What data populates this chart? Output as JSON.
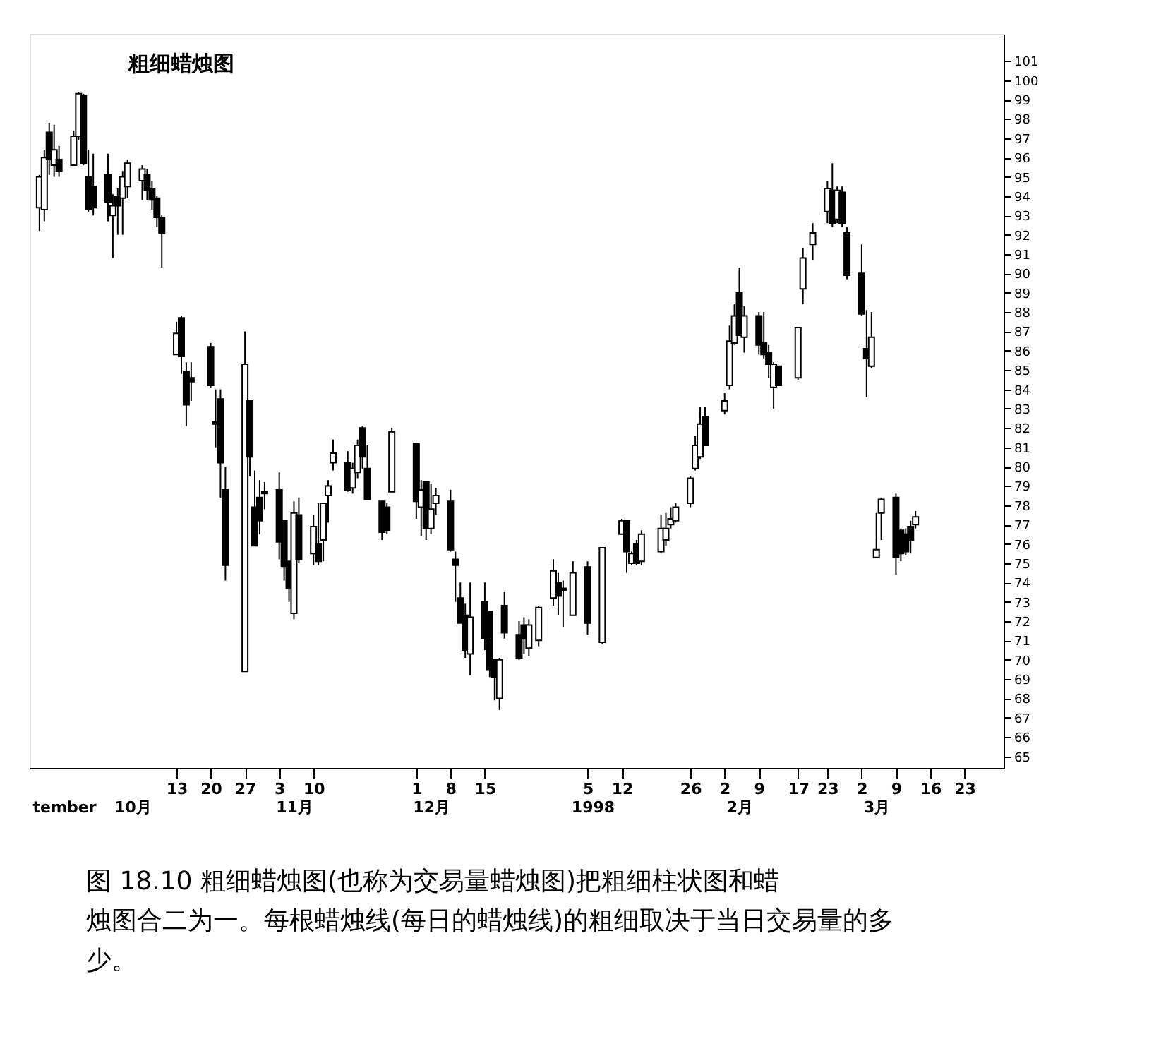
{
  "chart_data": {
    "type": "candlestick",
    "title": "粗细蜡烛图",
    "x": [
      "1997-09-15",
      "1997-09-16",
      "1997-09-17",
      "1997-09-18",
      "1997-09-19",
      "1997-09-22",
      "1997-09-23",
      "1997-09-24",
      "1997-09-25",
      "1997-09-26",
      "1997-09-29",
      "1997-09-30",
      "1997-10-01",
      "1997-10-02",
      "1997-10-03",
      "1997-10-06",
      "1997-10-07",
      "1997-10-08",
      "1997-10-09",
      "1997-10-10",
      "1997-10-13",
      "1997-10-14",
      "1997-10-15",
      "1997-10-16",
      "1997-10-20",
      "1997-10-21",
      "1997-10-22",
      "1997-10-23",
      "1997-10-27",
      "1997-10-28",
      "1997-10-29",
      "1997-10-30",
      "1997-10-31",
      "1997-11-03",
      "1997-11-04",
      "1997-11-05",
      "1997-11-06",
      "1997-11-07",
      "1997-11-10",
      "1997-11-11",
      "1997-11-12",
      "1997-11-13",
      "1997-11-14",
      "1997-11-17",
      "1997-11-18",
      "1997-11-19",
      "1997-11-20",
      "1997-11-21",
      "1997-11-24",
      "1997-11-25",
      "1997-11-26",
      "1997-12-01",
      "1997-12-02",
      "1997-12-03",
      "1997-12-04",
      "1997-12-05",
      "1997-12-08",
      "1997-12-09",
      "1997-12-10",
      "1997-12-11",
      "1997-12-12",
      "1997-12-15",
      "1997-12-16",
      "1997-12-17",
      "1997-12-18",
      "1997-12-19",
      "1997-12-22",
      "1997-12-23",
      "1997-12-24",
      "1997-12-26",
      "1997-12-29",
      "1997-12-30",
      "1997-12-31",
      "1998-01-02",
      "1998-01-05",
      "1998-01-08",
      "1998-01-12",
      "1998-01-13",
      "1998-01-14",
      "1998-01-15",
      "1998-01-16",
      "1998-01-20",
      "1998-01-21",
      "1998-01-22",
      "1998-01-23",
      "1998-01-26",
      "1998-01-27",
      "1998-01-28",
      "1998-01-29",
      "1998-02-02",
      "1998-02-03",
      "1998-02-04",
      "1998-02-05",
      "1998-02-06",
      "1998-02-09",
      "1998-02-10",
      "1998-02-11",
      "1998-02-12",
      "1998-02-13",
      "1998-02-17",
      "1998-02-18",
      "1998-02-20",
      "1998-02-23",
      "1998-02-24",
      "1998-02-25",
      "1998-02-26",
      "1998-02-27",
      "1998-03-02",
      "1998-03-03",
      "1998-03-04",
      "1998-03-05",
      "1998-03-06",
      "1998-03-09",
      "1998-03-10",
      "1998-03-11",
      "1998-03-12",
      "1998-03-13"
    ],
    "ohlc": [
      [
        93.4,
        95.1,
        92.2,
        95.0
      ],
      [
        93.3,
        96.4,
        92.7,
        96.0
      ],
      [
        97.3,
        97.8,
        95.1,
        95.9
      ],
      [
        95.6,
        97.7,
        95.0,
        96.4
      ],
      [
        95.9,
        96.6,
        95.0,
        95.3
      ],
      [
        95.6,
        97.4,
        95.6,
        97.1
      ],
      [
        97.1,
        99.4,
        96.9,
        99.3
      ],
      [
        99.2,
        99.3,
        95.6,
        95.7
      ],
      [
        95.0,
        96.4,
        93.2,
        93.3
      ],
      [
        94.5,
        96.2,
        93.0,
        93.4
      ],
      [
        95.1,
        96.2,
        92.7,
        93.7
      ],
      [
        93.0,
        94.1,
        90.8,
        93.5
      ],
      [
        94.0,
        94.4,
        92.0,
        93.5
      ],
      [
        93.9,
        95.3,
        92.0,
        95.0
      ],
      [
        94.5,
        95.9,
        93.9,
        95.7
      ],
      [
        94.8,
        95.6,
        93.8,
        95.4
      ],
      [
        95.1,
        95.4,
        93.8,
        94.3
      ],
      [
        94.4,
        94.8,
        93.3,
        93.8
      ],
      [
        93.9,
        94.0,
        92.4,
        92.9
      ],
      [
        92.9,
        93.0,
        90.3,
        92.1
      ],
      [
        85.8,
        87.5,
        85.8,
        86.9
      ],
      [
        87.7,
        87.8,
        84.8,
        85.7
      ],
      [
        84.9,
        85.4,
        82.1,
        83.2
      ],
      [
        84.6,
        85.4,
        83.4,
        84.4
      ],
      [
        86.2,
        86.4,
        84.1,
        84.2
      ],
      [
        82.3,
        84.0,
        81.0,
        82.2
      ],
      [
        83.5,
        84.0,
        78.4,
        80.2
      ],
      [
        78.8,
        80.0,
        74.1,
        74.9
      ],
      [
        69.4,
        87.0,
        69.4,
        85.3
      ],
      [
        83.4,
        83.4,
        79.5,
        80.5
      ],
      [
        77.9,
        79.8,
        75.9,
        75.9
      ],
      [
        78.4,
        79.3,
        76.5,
        77.2
      ],
      [
        78.7,
        79.2,
        77.8,
        78.6
      ],
      [
        78.8,
        79.7,
        75.2,
        76.1
      ],
      [
        77.2,
        77.2,
        74.1,
        74.8
      ],
      [
        75.1,
        75.1,
        73.0,
        73.7
      ],
      [
        72.4,
        78.2,
        72.1,
        77.6
      ],
      [
        77.5,
        78.4,
        75.0,
        75.2
      ],
      [
        75.5,
        77.5,
        74.9,
        76.9
      ],
      [
        76.0,
        78.1,
        74.9,
        75.1
      ],
      [
        76.2,
        78.1,
        75.1,
        78.1
      ],
      [
        78.5,
        79.3,
        77.1,
        79.0
      ],
      [
        80.2,
        81.4,
        79.8,
        80.7
      ],
      [
        80.2,
        80.8,
        78.7,
        78.8
      ],
      [
        78.9,
        80.2,
        78.6,
        79.9
      ],
      [
        79.7,
        81.4,
        79.4,
        81.1
      ],
      [
        82.0,
        82.1,
        79.9,
        80.5
      ],
      [
        79.9,
        81.1,
        78.3,
        78.3
      ],
      [
        78.2,
        78.2,
        76.2,
        76.6
      ],
      [
        77.9,
        78.1,
        76.5,
        76.7
      ],
      [
        78.7,
        82.0,
        78.7,
        81.8
      ],
      [
        81.2,
        81.2,
        77.3,
        78.2
      ],
      [
        77.9,
        79.3,
        76.4,
        78.8
      ],
      [
        79.2,
        79.2,
        76.2,
        76.8
      ],
      [
        76.8,
        79.1,
        76.5,
        77.8
      ],
      [
        78.1,
        78.9,
        77.5,
        78.5
      ],
      [
        78.2,
        78.8,
        75.6,
        75.7
      ],
      [
        75.2,
        75.6,
        73.0,
        74.9
      ],
      [
        73.2,
        74.0,
        71.9,
        71.9
      ],
      [
        72.3,
        72.9,
        70.1,
        70.5
      ],
      [
        70.3,
        74.0,
        69.2,
        72.2
      ],
      [
        73.0,
        74.0,
        70.5,
        71.1
      ],
      [
        72.5,
        72.5,
        69.1,
        69.5
      ],
      [
        70.0,
        70.0,
        67.9,
        69.1
      ],
      [
        68.0,
        70.1,
        67.4,
        70.0
      ],
      [
        72.8,
        73.5,
        71.1,
        71.4
      ],
      [
        71.3,
        72.0,
        70.0,
        70.1
      ],
      [
        71.8,
        72.2,
        70.3,
        71.1
      ],
      [
        70.6,
        72.1,
        70.2,
        71.8
      ],
      [
        71.0,
        72.8,
        70.7,
        72.7
      ],
      [
        73.2,
        75.2,
        72.8,
        74.6
      ],
      [
        74.0,
        74.5,
        72.3,
        73.3
      ],
      [
        73.7,
        74.1,
        71.7,
        73.6
      ],
      [
        72.3,
        75.1,
        72.3,
        74.5
      ],
      [
        74.8,
        75.1,
        71.3,
        71.9
      ],
      [
        70.9,
        75.8,
        70.8,
        75.8
      ],
      [
        76.5,
        77.3,
        76.5,
        77.2
      ],
      [
        77.2,
        77.2,
        74.5,
        75.6
      ],
      [
        75.0,
        75.6,
        74.9,
        75.5
      ],
      [
        76.0,
        76.2,
        74.9,
        75.0
      ],
      [
        75.1,
        76.7,
        74.9,
        76.5
      ],
      [
        75.6,
        77.5,
        75.5,
        76.8
      ],
      [
        76.2,
        77.6,
        75.9,
        76.8
      ],
      [
        77.0,
        77.9,
        76.8,
        77.3
      ],
      [
        77.2,
        78.1,
        77.1,
        77.9
      ],
      [
        78.1,
        79.5,
        77.9,
        79.4
      ],
      [
        79.9,
        81.6,
        79.8,
        81.1
      ],
      [
        80.5,
        83.1,
        80.4,
        82.2
      ],
      [
        82.6,
        83.1,
        81.1,
        81.1
      ],
      [
        82.9,
        83.8,
        82.7,
        83.4
      ],
      [
        84.2,
        87.3,
        84.0,
        86.5
      ],
      [
        86.4,
        88.4,
        86.3,
        87.8
      ],
      [
        89.0,
        90.3,
        86.8,
        86.8
      ],
      [
        86.7,
        88.3,
        85.9,
        87.8
      ],
      [
        87.8,
        88.0,
        85.8,
        86.3
      ],
      [
        86.4,
        88.0,
        85.6,
        85.8
      ],
      [
        85.9,
        86.3,
        84.6,
        85.3
      ],
      [
        84.1,
        85.4,
        83.0,
        85.3
      ],
      [
        85.2,
        85.2,
        84.2,
        84.2
      ],
      [
        84.6,
        87.2,
        84.5,
        87.2
      ],
      [
        89.2,
        91.3,
        88.4,
        90.8
      ],
      [
        91.5,
        92.6,
        90.7,
        92.1
      ],
      [
        93.2,
        94.8,
        92.6,
        94.4
      ],
      [
        94.3,
        95.7,
        92.4,
        92.6
      ],
      [
        92.8,
        94.5,
        92.6,
        94.3
      ],
      [
        94.2,
        94.5,
        92.4,
        92.6
      ],
      [
        92.1,
        92.4,
        89.7,
        89.9
      ],
      [
        90.0,
        91.5,
        87.8,
        87.9
      ],
      [
        86.1,
        88.1,
        83.6,
        85.6
      ],
      [
        85.2,
        88.0,
        85.1,
        86.7
      ],
      [
        75.3,
        77.6,
        75.3,
        75.7
      ],
      [
        77.6,
        78.4,
        76.2,
        78.3
      ],
      [
        78.4,
        78.6,
        74.4,
        75.3
      ],
      [
        76.7,
        76.8,
        75.1,
        75.5
      ],
      [
        76.5,
        76.8,
        75.4,
        75.6
      ],
      [
        76.9,
        77.2,
        75.5,
        76.2
      ],
      [
        77.0,
        77.7,
        76.8,
        77.4
      ]
    ],
    "xlim": [
      "1997-09-13",
      "1998-03-31"
    ],
    "xticks": [
      {
        "value": "1997-10-13",
        "label": "13"
      },
      {
        "value": "1997-10-20",
        "label": "20"
      },
      {
        "value": "1997-10-27",
        "label": "27"
      },
      {
        "value": "1997-11-03",
        "label": "3"
      },
      {
        "value": "1997-11-10",
        "label": "10"
      },
      {
        "value": "1997-12-01",
        "label": "1"
      },
      {
        "value": "1997-12-08",
        "label": "8"
      },
      {
        "value": "1997-12-15",
        "label": "15"
      },
      {
        "value": "1998-01-05",
        "label": "5"
      },
      {
        "value": "1998-01-12",
        "label": "12"
      },
      {
        "value": "1998-01-26",
        "label": "26"
      },
      {
        "value": "1998-02-02",
        "label": "2"
      },
      {
        "value": "1998-02-09",
        "label": "9"
      },
      {
        "value": "1998-02-17",
        "label": "17"
      },
      {
        "value": "1998-02-23",
        "label": "23"
      },
      {
        "value": "1998-03-02",
        "label": "2"
      },
      {
        "value": "1998-03-09",
        "label": "9"
      },
      {
        "value": "1998-03-16",
        "label": "16"
      },
      {
        "value": "1998-03-23",
        "label": "23"
      }
    ],
    "ylim": [
      64.4,
      102.4
    ],
    "yticks": [
      65,
      66,
      67,
      68,
      69,
      70,
      71,
      72,
      73,
      74,
      75,
      76,
      77,
      78,
      79,
      80,
      81,
      82,
      83,
      84,
      85,
      86,
      87,
      88,
      89,
      90,
      91,
      92,
      93,
      94,
      95,
      96,
      97,
      98,
      99,
      100,
      101
    ],
    "grid": false,
    "x2lim": [
      "1997-09-13",
      "1998-03-31"
    ],
    "x2ticks": [
      {
        "value": "1997-09-20",
        "label": "tember"
      },
      {
        "value": "1997-10-04",
        "label": "10月"
      },
      {
        "value": "1997-11-06",
        "label": "11月"
      },
      {
        "value": "1997-12-04",
        "label": "12月"
      },
      {
        "value": "1998-01-06",
        "label": "1998"
      },
      {
        "value": "1998-02-05",
        "label": "2月"
      },
      {
        "value": "1998-03-05",
        "label": "3月"
      }
    ],
    "annotations": [
      "图 18.10  粗细蜡烛图(也称为交易量蜡烛图)把粗细柱状图和蜡烛图合二为一。每根蜡烛线(每日的蜡烛线)的粗细取决于当日交易量的多少。"
    ]
  }
}
